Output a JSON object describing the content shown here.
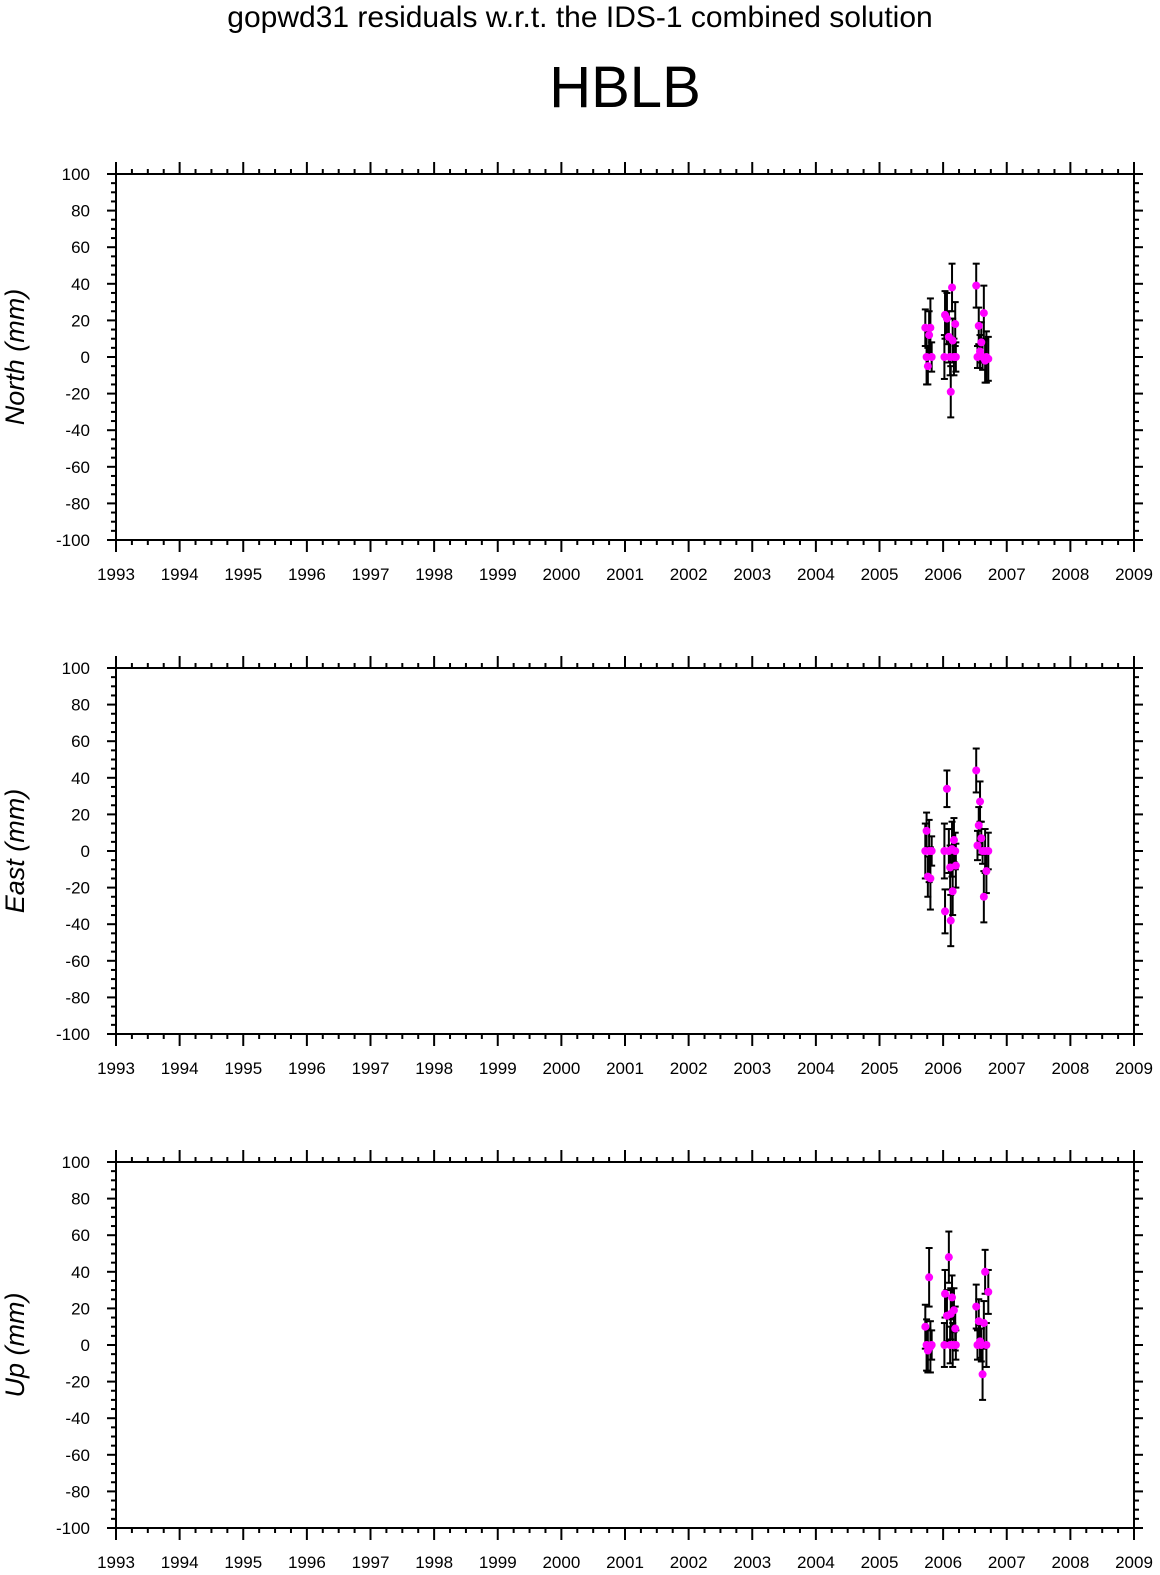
{
  "header": {
    "supertitle": "gopwd31 residuals w.r.t. the IDS-1 combined solution",
    "station": "HBLB"
  },
  "style": {
    "point_color": "#ff00ff",
    "errorbar_color": "#000000",
    "axis_color": "#000000"
  },
  "chart_data": [
    {
      "type": "scatter",
      "ylabel": "North (mm)",
      "xlim": [
        1993,
        2009
      ],
      "ylim": [
        -100,
        100
      ],
      "x_ticks": [
        "1993",
        "1994",
        "1995",
        "1996",
        "1997",
        "1998",
        "1999",
        "2000",
        "2001",
        "2002",
        "2003",
        "2004",
        "2005",
        "2006",
        "2007",
        "2008",
        "2009"
      ],
      "y_ticks": [
        "100",
        "80",
        "60",
        "40",
        "20",
        "0",
        "-20",
        "-40",
        "-60",
        "-80",
        "-100"
      ],
      "points": [
        {
          "x": 2005.72,
          "y": 16,
          "err": 10
        },
        {
          "x": 2005.74,
          "y": 0,
          "err": 15
        },
        {
          "x": 2005.76,
          "y": -5,
          "err": 10
        },
        {
          "x": 2005.78,
          "y": 12,
          "err": 13
        },
        {
          "x": 2005.8,
          "y": 16,
          "err": 16
        },
        {
          "x": 2005.82,
          "y": 0,
          "err": 8
        },
        {
          "x": 2006.02,
          "y": 0,
          "err": 12
        },
        {
          "x": 2006.03,
          "y": 23,
          "err": 13
        },
        {
          "x": 2006.06,
          "y": 21,
          "err": 14
        },
        {
          "x": 2006.09,
          "y": 11,
          "err": 14
        },
        {
          "x": 2006.11,
          "y": 0,
          "err": 10
        },
        {
          "x": 2006.12,
          "y": -19,
          "err": 14
        },
        {
          "x": 2006.14,
          "y": 38,
          "err": 13
        },
        {
          "x": 2006.15,
          "y": 9,
          "err": 12
        },
        {
          "x": 2006.17,
          "y": 0,
          "err": 10
        },
        {
          "x": 2006.19,
          "y": 18,
          "err": 12
        },
        {
          "x": 2006.2,
          "y": 0,
          "err": 8
        },
        {
          "x": 2006.52,
          "y": 39,
          "err": 12
        },
        {
          "x": 2006.54,
          "y": 0,
          "err": 6
        },
        {
          "x": 2006.56,
          "y": 17,
          "err": 10
        },
        {
          "x": 2006.58,
          "y": 3,
          "err": 9
        },
        {
          "x": 2006.6,
          "y": 8,
          "err": 11
        },
        {
          "x": 2006.62,
          "y": 0,
          "err": 7
        },
        {
          "x": 2006.64,
          "y": 24,
          "err": 15
        },
        {
          "x": 2006.66,
          "y": -2,
          "err": 12
        },
        {
          "x": 2006.68,
          "y": 0,
          "err": 14
        },
        {
          "x": 2006.71,
          "y": -1,
          "err": 12
        }
      ]
    },
    {
      "type": "scatter",
      "ylabel": "East (mm)",
      "xlim": [
        1993,
        2009
      ],
      "ylim": [
        -100,
        100
      ],
      "x_ticks": [
        "1993",
        "1994",
        "1995",
        "1996",
        "1997",
        "1998",
        "1999",
        "2000",
        "2001",
        "2002",
        "2003",
        "2004",
        "2005",
        "2006",
        "2007",
        "2008",
        "2009"
      ],
      "y_ticks": [
        "100",
        "80",
        "60",
        "40",
        "20",
        "0",
        "-20",
        "-40",
        "-60",
        "-80",
        "-100"
      ],
      "points": [
        {
          "x": 2005.72,
          "y": 0,
          "err": 15
        },
        {
          "x": 2005.74,
          "y": 11,
          "err": 10
        },
        {
          "x": 2005.76,
          "y": -14,
          "err": 11
        },
        {
          "x": 2005.78,
          "y": 0,
          "err": 17
        },
        {
          "x": 2005.8,
          "y": -15,
          "err": 17
        },
        {
          "x": 2005.82,
          "y": 0,
          "err": 8
        },
        {
          "x": 2006.02,
          "y": 0,
          "err": 15
        },
        {
          "x": 2006.03,
          "y": -33,
          "err": 12
        },
        {
          "x": 2006.06,
          "y": 34,
          "err": 10
        },
        {
          "x": 2006.09,
          "y": 0,
          "err": 12
        },
        {
          "x": 2006.11,
          "y": -9,
          "err": 12
        },
        {
          "x": 2006.12,
          "y": -38,
          "err": 14
        },
        {
          "x": 2006.14,
          "y": 1,
          "err": 15
        },
        {
          "x": 2006.15,
          "y": -22,
          "err": 13
        },
        {
          "x": 2006.17,
          "y": 6,
          "err": 12
        },
        {
          "x": 2006.19,
          "y": 0,
          "err": 10
        },
        {
          "x": 2006.2,
          "y": -8,
          "err": 12
        },
        {
          "x": 2006.52,
          "y": 44,
          "err": 12
        },
        {
          "x": 2006.54,
          "y": 3,
          "err": 8
        },
        {
          "x": 2006.56,
          "y": 14,
          "err": 10
        },
        {
          "x": 2006.58,
          "y": 27,
          "err": 11
        },
        {
          "x": 2006.6,
          "y": 7,
          "err": 9
        },
        {
          "x": 2006.62,
          "y": 0,
          "err": 7
        },
        {
          "x": 2006.64,
          "y": -25,
          "err": 14
        },
        {
          "x": 2006.66,
          "y": 0,
          "err": 12
        },
        {
          "x": 2006.68,
          "y": -11,
          "err": 12
        },
        {
          "x": 2006.71,
          "y": 0,
          "err": 10
        }
      ]
    },
    {
      "type": "scatter",
      "ylabel": "Up (mm)",
      "xlim": [
        1993,
        2009
      ],
      "ylim": [
        -100,
        100
      ],
      "x_ticks": [
        "1993",
        "1994",
        "1995",
        "1996",
        "1997",
        "1998",
        "1999",
        "2000",
        "2001",
        "2002",
        "2003",
        "2004",
        "2005",
        "2006",
        "2007",
        "2008",
        "2009"
      ],
      "y_ticks": [
        "100",
        "80",
        "60",
        "40",
        "20",
        "0",
        "-20",
        "-40",
        "-60",
        "-80",
        "-100"
      ],
      "points": [
        {
          "x": 2005.72,
          "y": 10,
          "err": 12
        },
        {
          "x": 2005.74,
          "y": 0,
          "err": 14
        },
        {
          "x": 2005.76,
          "y": -3,
          "err": 12
        },
        {
          "x": 2005.78,
          "y": 37,
          "err": 16
        },
        {
          "x": 2005.8,
          "y": -1,
          "err": 14
        },
        {
          "x": 2005.82,
          "y": 0,
          "err": 8
        },
        {
          "x": 2006.02,
          "y": 0,
          "err": 12
        },
        {
          "x": 2006.03,
          "y": 28,
          "err": 13
        },
        {
          "x": 2006.06,
          "y": 16,
          "err": 14
        },
        {
          "x": 2006.09,
          "y": 48,
          "err": 14
        },
        {
          "x": 2006.11,
          "y": 0,
          "err": 10
        },
        {
          "x": 2006.12,
          "y": 17,
          "err": 14
        },
        {
          "x": 2006.14,
          "y": 26,
          "err": 12
        },
        {
          "x": 2006.15,
          "y": 0,
          "err": 12
        },
        {
          "x": 2006.17,
          "y": 19,
          "err": 12
        },
        {
          "x": 2006.19,
          "y": 9,
          "err": 12
        },
        {
          "x": 2006.2,
          "y": 0,
          "err": 8
        },
        {
          "x": 2006.52,
          "y": 21,
          "err": 12
        },
        {
          "x": 2006.54,
          "y": 0,
          "err": 8
        },
        {
          "x": 2006.56,
          "y": 13,
          "err": 12
        },
        {
          "x": 2006.58,
          "y": 2,
          "err": 9
        },
        {
          "x": 2006.6,
          "y": 0,
          "err": 9
        },
        {
          "x": 2006.62,
          "y": -16,
          "err": 14
        },
        {
          "x": 2006.64,
          "y": 12,
          "err": 12
        },
        {
          "x": 2006.66,
          "y": 40,
          "err": 12
        },
        {
          "x": 2006.68,
          "y": 0,
          "err": 12
        },
        {
          "x": 2006.71,
          "y": 29,
          "err": 12
        }
      ]
    }
  ]
}
